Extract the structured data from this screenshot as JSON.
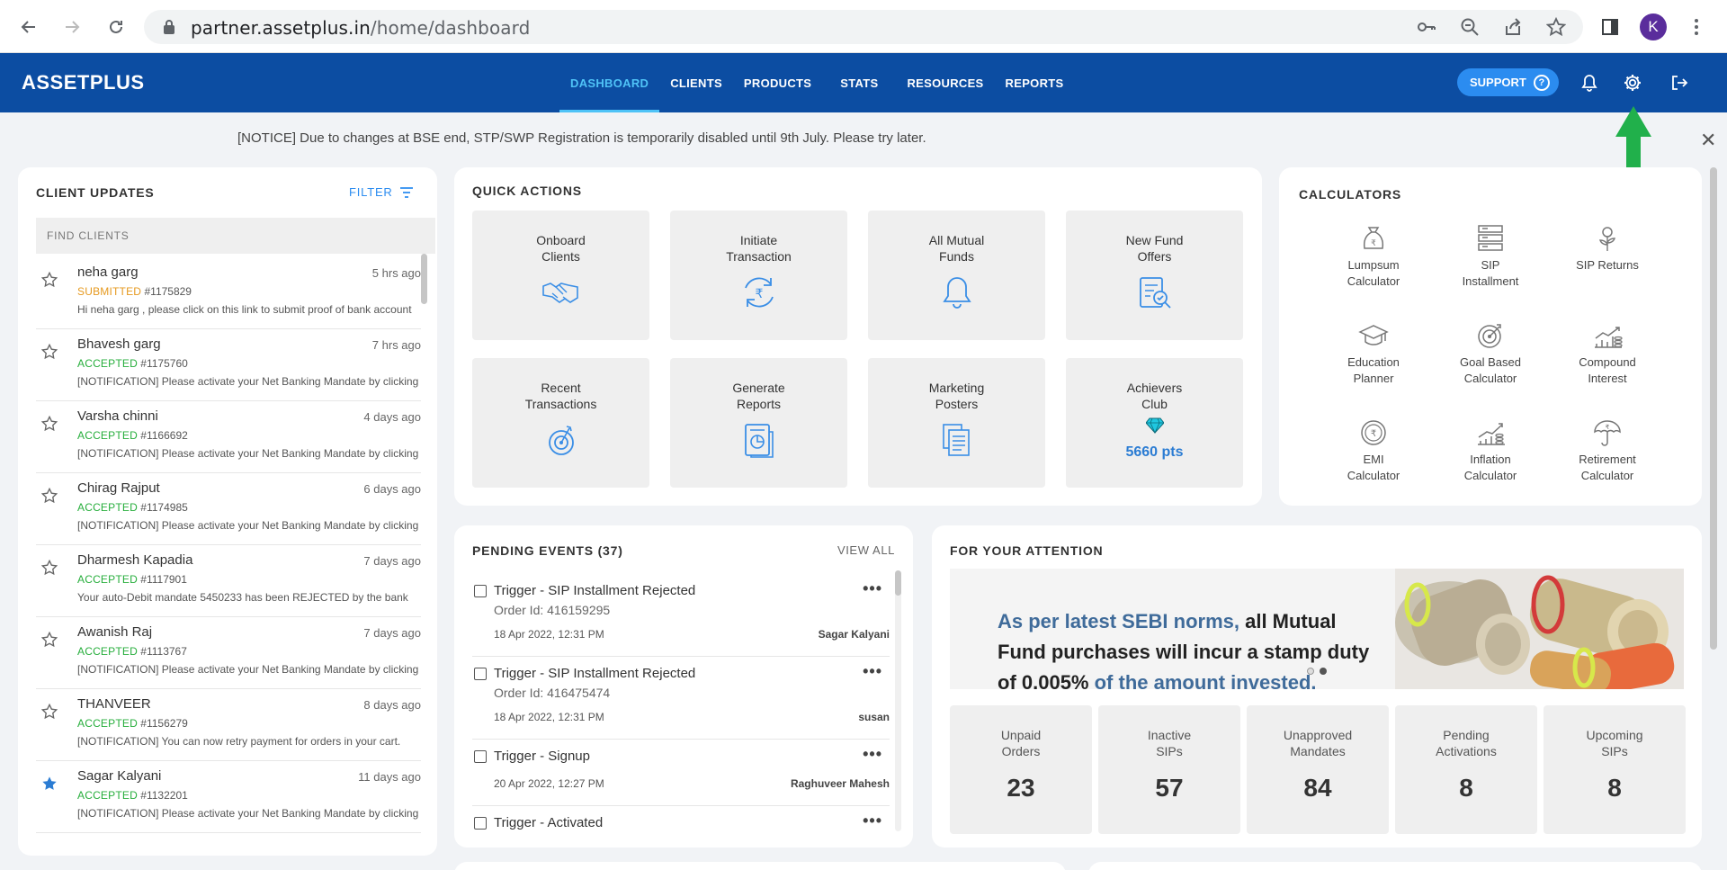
{
  "browser": {
    "url_host": "partner.assetplus.in",
    "url_path": "/home/dashboard",
    "avatar_letter": "K"
  },
  "header": {
    "logo": "ASSETPLUS",
    "nav": [
      "DASHBOARD",
      "CLIENTS",
      "PRODUCTS",
      "STATS",
      "RESOURCES",
      "REPORTS"
    ],
    "active_nav": "DASHBOARD",
    "support_label": "SUPPORT",
    "accent": "#0c4da2"
  },
  "notice": {
    "text": "[NOTICE] Due to changes at BSE end, STP/SWP Registration is temporarily disabled until 9th July. Please try later."
  },
  "client_updates": {
    "title": "CLIENT UPDATES",
    "filter_label": "FILTER",
    "search_placeholder": "FIND CLIENTS",
    "items": [
      {
        "name": "neha garg",
        "time": "5 hrs ago",
        "status": "SUBMITTED",
        "order": "#1175829",
        "message": "Hi neha garg , please click on this link to submit proof of bank account",
        "starred": false
      },
      {
        "name": "Bhavesh garg",
        "time": "7 hrs ago",
        "status": "ACCEPTED",
        "order": "#1175760",
        "message": "[NOTIFICATION] Please activate your Net Banking Mandate by clicking",
        "starred": false
      },
      {
        "name": "Varsha chinni",
        "time": "4 days ago",
        "status": "ACCEPTED",
        "order": "#1166692",
        "message": "[NOTIFICATION] Please activate your Net Banking Mandate by clicking",
        "starred": false
      },
      {
        "name": "Chirag Rajput",
        "time": "6 days ago",
        "status": "ACCEPTED",
        "order": "#1174985",
        "message": "[NOTIFICATION] Please activate your Net Banking Mandate by clicking",
        "starred": false
      },
      {
        "name": "Dharmesh Kapadia",
        "time": "7 days ago",
        "status": "ACCEPTED",
        "order": "#1117901",
        "message": "Your auto-Debit mandate 5450233 has been REJECTED by the bank",
        "starred": false
      },
      {
        "name": "Awanish Raj",
        "time": "7 days ago",
        "status": "ACCEPTED",
        "order": "#1113767",
        "message": "[NOTIFICATION] Please activate your Net Banking Mandate by clicking",
        "starred": false
      },
      {
        "name": "THANVEER",
        "time": "8 days ago",
        "status": "ACCEPTED",
        "order": "#1156279",
        "message": "[NOTIFICATION] You can now retry payment for orders in your cart.",
        "starred": false
      },
      {
        "name": "Sagar Kalyani",
        "time": "11 days ago",
        "status": "ACCEPTED",
        "order": "#1132201",
        "message": "[NOTIFICATION] Please activate your Net Banking Mandate by clicking",
        "starred": true
      }
    ]
  },
  "quick_actions": {
    "title": "QUICK ACTIONS",
    "tiles": [
      {
        "label1": "Onboard",
        "label2": "Clients",
        "icon": "handshake-icon"
      },
      {
        "label1": "Initiate",
        "label2": "Transaction",
        "icon": "rupee-cycle-icon"
      },
      {
        "label1": "All Mutual",
        "label2": "Funds",
        "icon": "bell-icon"
      },
      {
        "label1": "New Fund",
        "label2": "Offers",
        "icon": "clipboard-search-icon"
      },
      {
        "label1": "Recent",
        "label2": "Transactions",
        "icon": "target-icon"
      },
      {
        "label1": "Generate",
        "label2": "Reports",
        "icon": "report-icon"
      },
      {
        "label1": "Marketing",
        "label2": "Posters",
        "icon": "documents-icon"
      },
      {
        "label1": "Achievers",
        "label2": "Club",
        "icon": "diamond-icon",
        "points": "5660 pts"
      }
    ]
  },
  "calculators": {
    "title": "CALCULATORS",
    "items": [
      {
        "label1": "Lumpsum",
        "label2": "Calculator",
        "icon": "money-bag-icon"
      },
      {
        "label1": "SIP",
        "label2": "Installment",
        "icon": "stack-icon"
      },
      {
        "label1": "SIP Returns",
        "label2": "",
        "icon": "plant-icon"
      },
      {
        "label1": "Education",
        "label2": "Planner",
        "icon": "graduation-cap-icon"
      },
      {
        "label1": "Goal Based",
        "label2": "Calculator",
        "icon": "target-icon"
      },
      {
        "label1": "Compound",
        "label2": "Interest",
        "icon": "growth-chart-icon"
      },
      {
        "label1": "EMI",
        "label2": "Calculator",
        "icon": "coin-icon"
      },
      {
        "label1": "Inflation",
        "label2": "Calculator",
        "icon": "inflation-chart-icon"
      },
      {
        "label1": "Retirement",
        "label2": "Calculator",
        "icon": "umbrella-icon"
      }
    ]
  },
  "pending_events": {
    "title": "PENDING EVENTS (37)",
    "view_all": "VIEW ALL",
    "items": [
      {
        "title": "Trigger - SIP Installment Rejected",
        "order": "Order Id: 416159295",
        "date": "18 Apr 2022, 12:31 PM",
        "who": "Sagar Kalyani"
      },
      {
        "title": "Trigger - SIP Installment Rejected",
        "order": "Order Id: 416475474",
        "date": "18 Apr 2022, 12:31 PM",
        "who": "susan"
      },
      {
        "title": "Trigger - Signup",
        "order": "",
        "date": "20 Apr 2022, 12:27 PM",
        "who": "Raghuveer Mahesh"
      },
      {
        "title": "Trigger - Activated",
        "order": "",
        "date": "",
        "who": ""
      }
    ]
  },
  "attention": {
    "title": "FOR YOUR ATTENTION",
    "banner_a": "As per latest SEBI norms,",
    "banner_b": " all Mutual Fund purchases will incur a stamp duty of 0.005%",
    "banner_c": " of the amount invested.",
    "stats": [
      {
        "label1": "Unpaid",
        "label2": "Orders",
        "value": "23"
      },
      {
        "label1": "Inactive",
        "label2": "SIPs",
        "value": "57"
      },
      {
        "label1": "Unapproved",
        "label2": "Mandates",
        "value": "84"
      },
      {
        "label1": "Pending",
        "label2": "Activations",
        "value": "8"
      },
      {
        "label1": "Upcoming",
        "label2": "SIPs",
        "value": "8"
      }
    ]
  }
}
